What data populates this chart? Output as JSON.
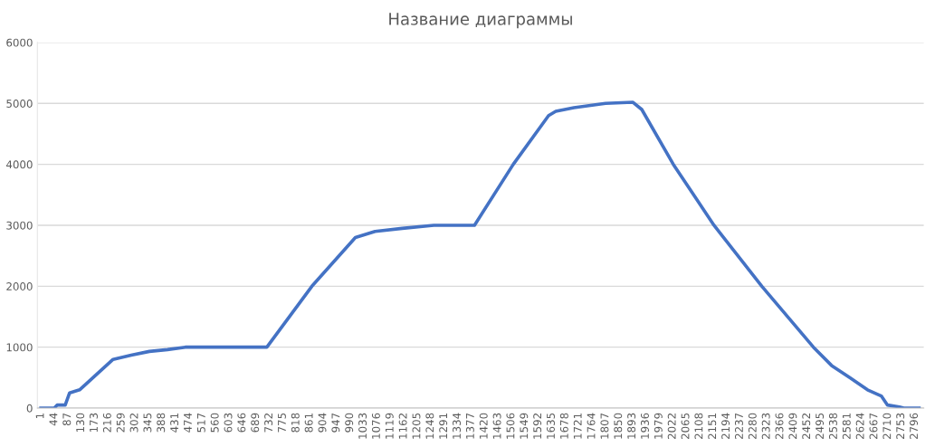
{
  "chart_data": {
    "type": "line",
    "title": "Название диаграммы",
    "series": [
      {
        "color": "#4472c4",
        "x": [
          1,
          44,
          53,
          79,
          93,
          125,
          232,
          290,
          348,
          406,
          463,
          724,
          868,
          1007,
          1070,
          1157,
          1258,
          1388,
          1512,
          1625,
          1648,
          1706,
          1807,
          1894,
          1923,
          2024,
          2154,
          2307,
          2472,
          2530,
          2588,
          2645,
          2689,
          2709,
          2747,
          2761,
          2810
        ],
        "values": [
          0,
          0,
          50,
          50,
          250,
          300,
          800,
          870,
          930,
          960,
          1000,
          1000,
          2000,
          2800,
          2900,
          2950,
          3000,
          3000,
          4000,
          4800,
          4870,
          4930,
          5000,
          5020,
          4900,
          4000,
          3000,
          2000,
          1000,
          700,
          500,
          300,
          200,
          50,
          20,
          0,
          0
        ]
      }
    ],
    "xlim": [
      -10,
      2825
    ],
    "xticks": [
      1,
      44,
      87,
      130,
      173,
      216,
      259,
      302,
      345,
      388,
      431,
      474,
      517,
      560,
      603,
      646,
      689,
      732,
      775,
      818,
      861,
      904,
      947,
      990,
      1033,
      1076,
      1119,
      1162,
      1205,
      1248,
      1291,
      1334,
      1377,
      1420,
      1463,
      1506,
      1549,
      1592,
      1635,
      1678,
      1721,
      1764,
      1807,
      1850,
      1893,
      1936,
      1979,
      2022,
      2065,
      2108,
      2151,
      2194,
      2237,
      2280,
      2323,
      2366,
      2409,
      2452,
      2495,
      2538,
      2581,
      2624,
      2667,
      2710,
      2753,
      2796
    ],
    "ylim": [
      0,
      6000
    ],
    "yticks": [
      0,
      1000,
      2000,
      3000,
      4000,
      5000,
      6000
    ],
    "grid": "y",
    "marker": "none",
    "line_style": "solid"
  }
}
